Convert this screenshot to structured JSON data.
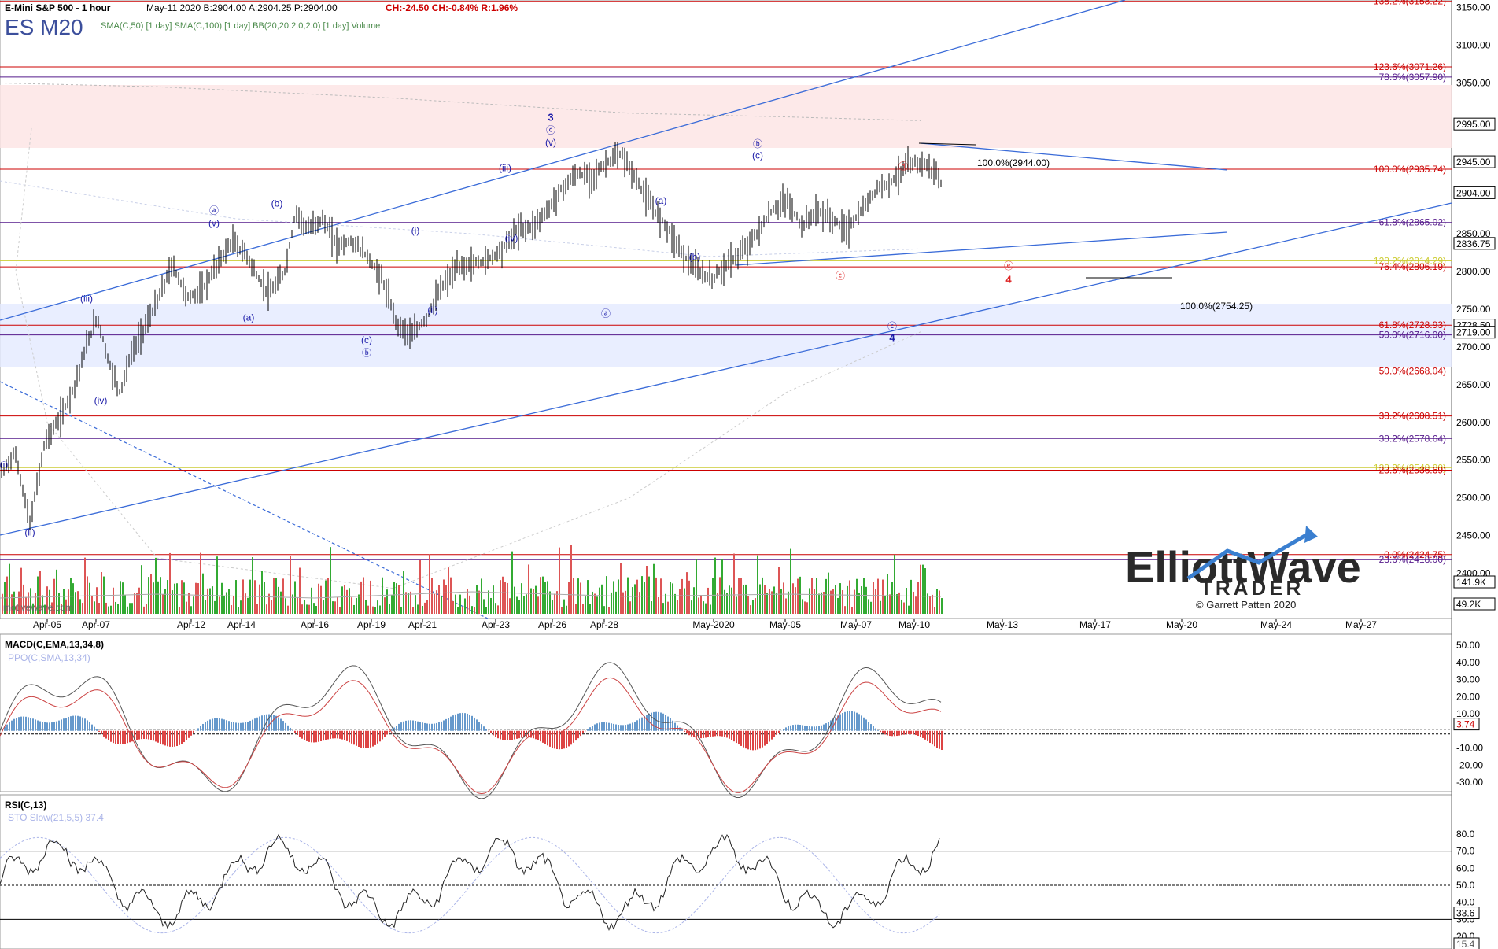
{
  "header": {
    "symbol_title": "E-Mini S&P 500 - 1 hour",
    "quote": "May-11 2020  B:2904.00  A:2904.25  P:2904.00",
    "change": "CH:-24.50  CH:-0.84%  R:1.96%",
    "ticker": "ES M20",
    "overlays": "SMA(C,50) [1 day]  SMA(C,100) [1 day]  BB(20,20,2.0,2.0) [1 day]  Volume"
  },
  "colors": {
    "up_bar": "#000000",
    "fib_red": "#cc0000",
    "fib_purple": "#551a8b",
    "fib_yellow": "#cccc33",
    "trend_blue": "#3a6bd8",
    "wave_blue": "#1a1aa8",
    "wave_red": "#dd2222",
    "vol_green": "#33aa33",
    "vol_red": "#dd5555",
    "zone_red": "#fde4e4",
    "zone_blue": "#e4eaff",
    "macd_hist_pos": "#6699cc",
    "macd_hist_neg": "#dd4444",
    "last_price_bg": "#000000"
  },
  "chart_data": {
    "type": "candlestick",
    "price_axis": {
      "ticks": [
        3150,
        3100,
        3050,
        3000,
        2950,
        2900,
        2850,
        2800,
        2750,
        2700,
        2650,
        2600,
        2550,
        2500,
        2450,
        2400,
        2350
      ],
      "labels": [
        "3150.00",
        "3100.00",
        "3050.00",
        "2995.00",
        "2945.00",
        "2904.00",
        "2850.00",
        "2836.75",
        "2800.00",
        "2750.00",
        "2728.50",
        "2719.00",
        "2700.00",
        "2650.00",
        "2600.00",
        "2550.00",
        "2500.00",
        "2450.00",
        "2400.00",
        "141.9K",
        "49.2K"
      ],
      "ylim": [
        2340,
        3160
      ]
    },
    "x_axis_labels": [
      "Apr-05",
      "Apr-07",
      "Apr-12",
      "Apr-14",
      "Apr-16",
      "Apr-19",
      "Apr-21",
      "Apr-23",
      "Apr-26",
      "Apr-28",
      "May-2020",
      "May-05",
      "May-07",
      "May-10",
      "May-13",
      "May-17",
      "May-20",
      "May-24",
      "May-27"
    ],
    "last_price": 2904.0,
    "price_path": [
      [
        0,
        2530
      ],
      [
        20,
        2560
      ],
      [
        40,
        2465
      ],
      [
        60,
        2575
      ],
      [
        80,
        2605
      ],
      [
        100,
        2650
      ],
      [
        115,
        2700
      ],
      [
        130,
        2740
      ],
      [
        145,
        2680
      ],
      [
        160,
        2640
      ],
      [
        175,
        2690
      ],
      [
        190,
        2720
      ],
      [
        210,
        2760
      ],
      [
        230,
        2810
      ],
      [
        250,
        2765
      ],
      [
        270,
        2775
      ],
      [
        290,
        2810
      ],
      [
        310,
        2840
      ],
      [
        330,
        2820
      ],
      [
        345,
        2790
      ],
      [
        360,
        2770
      ],
      [
        380,
        2800
      ],
      [
        395,
        2880
      ],
      [
        410,
        2855
      ],
      [
        430,
        2870
      ],
      [
        450,
        2835
      ],
      [
        470,
        2840
      ],
      [
        490,
        2820
      ],
      [
        510,
        2790
      ],
      [
        530,
        2730
      ],
      [
        550,
        2715
      ],
      [
        570,
        2740
      ],
      [
        590,
        2780
      ],
      [
        610,
        2805
      ],
      [
        630,
        2810
      ],
      [
        650,
        2815
      ],
      [
        670,
        2830
      ],
      [
        690,
        2855
      ],
      [
        710,
        2860
      ],
      [
        730,
        2880
      ],
      [
        750,
        2910
      ],
      [
        770,
        2930
      ],
      [
        790,
        2925
      ],
      [
        810,
        2945
      ],
      [
        830,
        2955
      ],
      [
        850,
        2920
      ],
      [
        870,
        2885
      ],
      [
        890,
        2860
      ],
      [
        910,
        2825
      ],
      [
        930,
        2800
      ],
      [
        950,
        2790
      ],
      [
        970,
        2810
      ],
      [
        990,
        2825
      ],
      [
        1010,
        2850
      ],
      [
        1030,
        2880
      ],
      [
        1050,
        2895
      ],
      [
        1070,
        2860
      ],
      [
        1090,
        2880
      ],
      [
        1110,
        2870
      ],
      [
        1130,
        2855
      ],
      [
        1150,
        2880
      ],
      [
        1170,
        2910
      ],
      [
        1190,
        2920
      ],
      [
        1210,
        2940
      ],
      [
        1230,
        2945
      ],
      [
        1250,
        2930
      ],
      [
        1260,
        2904
      ]
    ],
    "fib_levels": [
      {
        "label": "138.2%(3158.22)",
        "value": 3158.22,
        "color": "red"
      },
      {
        "label": "123.6%(3071.26)",
        "value": 3071.26,
        "color": "red"
      },
      {
        "label": "78.6%(3057.90)",
        "value": 3057.9,
        "color": "purple"
      },
      {
        "label": "100.0%(2944.00)",
        "value": 2944.0,
        "color": "black"
      },
      {
        "label": "100.0%(2935.74)",
        "value": 2935.74,
        "color": "red"
      },
      {
        "label": "61.8%(2865.02)",
        "value": 2865.02,
        "color": "purple"
      },
      {
        "label": "128.2%(2814.29)",
        "value": 2814.29,
        "color": "yellow"
      },
      {
        "label": "76.4%(2806.19)",
        "value": 2806.19,
        "color": "red"
      },
      {
        "label": "100.0%(2754.25)",
        "value": 2754.25,
        "color": "black"
      },
      {
        "label": "61.8%(2728.93)",
        "value": 2728.93,
        "color": "red"
      },
      {
        "label": "50.0%(2716.00)",
        "value": 2716.0,
        "color": "purple"
      },
      {
        "label": "50.0%(2668.04)",
        "value": 2668.04,
        "color": "red"
      },
      {
        "label": "38.2%(2608.51)",
        "value": 2608.51,
        "color": "red"
      },
      {
        "label": "38.2%(2578.64)",
        "value": 2578.64,
        "color": "purple"
      },
      {
        "label": "138.2%(2540.00)",
        "value": 2540.0,
        "color": "yellow"
      },
      {
        "label": "23.6%(2536.69)",
        "value": 2536.69,
        "color": "red"
      },
      {
        "label": "0.0%(2424.75)",
        "value": 2424.75,
        "color": "red"
      },
      {
        "label": "23.6%(2418.00)",
        "value": 2418.0,
        "color": "purple"
      }
    ],
    "wave_labels": [
      {
        "text": "(i)",
        "x": 5,
        "y": 2540,
        "color": "blue"
      },
      {
        "text": "(ii)",
        "x": 38,
        "y": 2450,
        "color": "blue"
      },
      {
        "text": "(iii)",
        "x": 110,
        "y": 2760,
        "color": "blue"
      },
      {
        "text": "(iv)",
        "x": 128,
        "y": 2625,
        "color": "blue"
      },
      {
        "text": "ⓐ",
        "x": 272,
        "y": 2877,
        "color": "blue"
      },
      {
        "text": "(v)",
        "x": 272,
        "y": 2860,
        "color": "blue"
      },
      {
        "text": "(a)",
        "x": 316,
        "y": 2735,
        "color": "blue"
      },
      {
        "text": "(b)",
        "x": 352,
        "y": 2886,
        "color": "blue"
      },
      {
        "text": "(c)",
        "x": 466,
        "y": 2705,
        "color": "blue"
      },
      {
        "text": "ⓑ",
        "x": 466,
        "y": 2688,
        "color": "blue"
      },
      {
        "text": "(i)",
        "x": 528,
        "y": 2850,
        "color": "blue"
      },
      {
        "text": "(ii)",
        "x": 550,
        "y": 2745,
        "color": "blue"
      },
      {
        "text": "(iii)",
        "x": 642,
        "y": 2933,
        "color": "blue"
      },
      {
        "text": "(iv)",
        "x": 650,
        "y": 2840,
        "color": "blue"
      },
      {
        "text": "3",
        "x": 700,
        "y": 3000,
        "color": "blue"
      },
      {
        "text": "ⓒ",
        "x": 700,
        "y": 2983,
        "color": "blue"
      },
      {
        "text": "(v)",
        "x": 700,
        "y": 2967,
        "color": "blue"
      },
      {
        "text": "ⓐ",
        "x": 770,
        "y": 2740,
        "color": "blue"
      },
      {
        "text": "(a)",
        "x": 840,
        "y": 2890,
        "color": "blue"
      },
      {
        "text": "(b)",
        "x": 883,
        "y": 2815,
        "color": "blue"
      },
      {
        "text": "ⓑ",
        "x": 963,
        "y": 2965,
        "color": "blue"
      },
      {
        "text": "(c)",
        "x": 963,
        "y": 2950,
        "color": "blue"
      },
      {
        "text": "ⓓ",
        "x": 1148,
        "y": 2935,
        "color": "red"
      },
      {
        "text": "ⓒ",
        "x": 1068,
        "y": 2790,
        "color": "red"
      },
      {
        "text": "ⓔ",
        "x": 1282,
        "y": 2803,
        "color": "red"
      },
      {
        "text": "4",
        "x": 1282,
        "y": 2785,
        "color": "red"
      },
      {
        "text": "ⓒ",
        "x": 1134,
        "y": 2723,
        "color": "blue"
      },
      {
        "text": "4",
        "x": 1134,
        "y": 2708,
        "color": "blue"
      }
    ]
  },
  "watermark": "motivewave.com",
  "logo": {
    "line1": "ElliottWave",
    "line2": "TRADER",
    "copyright": "© Garrett Patten 2020"
  },
  "macd_panel": {
    "title": "MACD(C,EMA,13,34,8)",
    "subtitle": "PPO(C,SMA,13,34)",
    "ticks": [
      "50.00",
      "40.00",
      "30.00",
      "20.00",
      "10.00",
      "-10.00",
      "-20.00",
      "-30.00"
    ],
    "value_label": "3.74"
  },
  "rsi_panel": {
    "title": "RSI(C,13)",
    "subtitle": "STO Slow(21,5,5) 37.4",
    "ticks": [
      "80.0",
      "70.0",
      "60.0",
      "50.0",
      "40.0",
      "30.0",
      "20.0"
    ],
    "value_label": "33.6",
    "value_label2": "15.4"
  }
}
